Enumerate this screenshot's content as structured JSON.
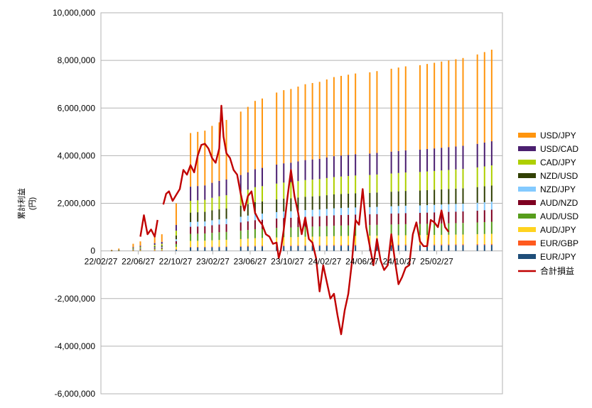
{
  "chart_data": {
    "type": "bar",
    "ylabel": "累計利益",
    "ylabel_unit": "(円)",
    "ylim": [
      -6000000,
      10000000
    ],
    "y_ticks": [
      -6000000,
      -4000000,
      -2000000,
      0,
      2000000,
      4000000,
      6000000,
      8000000,
      10000000
    ],
    "y_tick_labels": [
      "-6,000,000",
      "-4,000,000",
      "-2,000,000",
      "0",
      "2,000,000",
      "4,000,000",
      "6,000,000",
      "8,000,000",
      "10,000,000"
    ],
    "x_tick_labels": [
      "22/02/27",
      "22/06/27",
      "22/10/27",
      "23/02/27",
      "23/06/27",
      "23/10/27",
      "24/02/27",
      "24/06/27",
      "24/10/27",
      "25/02/27"
    ],
    "grid": true,
    "legend_position": "right",
    "stack_series": [
      {
        "name": "EUR/JPY",
        "color": "#1f4e79"
      },
      {
        "name": "EUR/GBP",
        "color": "#ff5a1f"
      },
      {
        "name": "AUD/JPY",
        "color": "#ffd320"
      },
      {
        "name": "AUD/USD",
        "color": "#579d1c"
      },
      {
        "name": "AUD/NZD",
        "color": "#7e0021"
      },
      {
        "name": "NZD/JPY",
        "color": "#83caff"
      },
      {
        "name": "NZD/USD",
        "color": "#314004"
      },
      {
        "name": "CAD/JPY",
        "color": "#aecf00"
      },
      {
        "name": "USD/CAD",
        "color": "#4b1f6f"
      },
      {
        "name": "USD/JPY",
        "color": "#ff950e"
      }
    ],
    "bar_totals": [
      [
        0,
        0
      ],
      [
        1,
        50000
      ],
      [
        2,
        100000
      ],
      [
        4,
        300000
      ],
      [
        5,
        400000
      ],
      [
        7,
        600000
      ],
      [
        8,
        700000
      ],
      [
        10,
        2000000
      ],
      [
        12,
        4950000
      ],
      [
        13,
        5000000
      ],
      [
        14,
        5050000
      ],
      [
        15,
        5250000
      ],
      [
        16,
        5400000
      ],
      [
        17,
        5500000
      ],
      [
        19,
        5850000
      ],
      [
        20,
        6050000
      ],
      [
        21,
        6300000
      ],
      [
        22,
        6400000
      ],
      [
        24,
        6650000
      ],
      [
        25,
        6750000
      ],
      [
        26,
        6800000
      ],
      [
        27,
        6900000
      ],
      [
        28,
        7000000
      ],
      [
        29,
        7050000
      ],
      [
        30,
        7100000
      ],
      [
        31,
        7200000
      ],
      [
        32,
        7300000
      ],
      [
        33,
        7350000
      ],
      [
        34,
        7400000
      ],
      [
        35,
        7450000
      ],
      [
        37,
        7500000
      ],
      [
        38,
        7550000
      ],
      [
        40,
        7650000
      ],
      [
        41,
        7700000
      ],
      [
        42,
        7750000
      ],
      [
        44,
        7800000
      ],
      [
        45,
        7850000
      ],
      [
        46,
        7900000
      ],
      [
        47,
        7950000
      ],
      [
        48,
        8000000
      ],
      [
        49,
        8050000
      ],
      [
        50,
        8100000
      ],
      [
        52,
        8250000
      ],
      [
        53,
        8350000
      ],
      [
        54,
        8450000
      ]
    ],
    "line_series": {
      "name": "合計損益",
      "color": "#c00000",
      "points": [
        [
          5,
          600000
        ],
        [
          5.5,
          1500000
        ],
        [
          6,
          700000
        ],
        [
          6.5,
          900000
        ],
        [
          7,
          600000
        ],
        [
          7.4,
          1300000
        ],
        [
          8,
          null
        ],
        [
          8.2,
          1950000
        ],
        [
          8.6,
          2400000
        ],
        [
          9,
          2500000
        ],
        [
          9.5,
          2100000
        ],
        [
          10,
          2350000
        ],
        [
          10.5,
          2600000
        ],
        [
          11,
          3400000
        ],
        [
          11.5,
          3200000
        ],
        [
          12,
          3600000
        ],
        [
          12.5,
          3300000
        ],
        [
          13,
          4000000
        ],
        [
          13.5,
          4450000
        ],
        [
          14,
          4500000
        ],
        [
          14.5,
          4300000
        ],
        [
          15,
          3900000
        ],
        [
          15.5,
          3700000
        ],
        [
          16,
          4300000
        ],
        [
          16.3,
          6100000
        ],
        [
          16.6,
          4800000
        ],
        [
          17,
          4100000
        ],
        [
          17.5,
          3900000
        ],
        [
          18,
          3400000
        ],
        [
          18.5,
          3200000
        ],
        [
          19,
          2400000
        ],
        [
          19.5,
          1700000
        ],
        [
          20,
          2300000
        ],
        [
          20.5,
          2500000
        ],
        [
          21,
          1600000
        ],
        [
          21.5,
          1300000
        ],
        [
          22,
          1100000
        ],
        [
          22.5,
          700000
        ],
        [
          23,
          600000
        ],
        [
          23.5,
          300000
        ],
        [
          24,
          350000
        ],
        [
          24.3,
          -300000
        ],
        [
          24.6,
          50000
        ],
        [
          25,
          900000
        ],
        [
          25.5,
          2200000
        ],
        [
          26,
          3400000
        ],
        [
          26.5,
          2300000
        ],
        [
          27,
          1600000
        ],
        [
          27.5,
          700000
        ],
        [
          28,
          1400000
        ],
        [
          28.5,
          500000
        ],
        [
          29,
          350000
        ],
        [
          29.5,
          -300000
        ],
        [
          30,
          -1700000
        ],
        [
          30.5,
          -600000
        ],
        [
          31,
          -1300000
        ],
        [
          31.5,
          -2000000
        ],
        [
          32,
          -1800000
        ],
        [
          32.5,
          -2700000
        ],
        [
          33,
          -3500000
        ],
        [
          33.5,
          -2500000
        ],
        [
          34,
          -1800000
        ],
        [
          34.5,
          -500000
        ],
        [
          35,
          1300000
        ],
        [
          35.5,
          1100000
        ],
        [
          36,
          2600000
        ],
        [
          36.5,
          1000000
        ],
        [
          37,
          200000
        ],
        [
          37.5,
          -600000
        ],
        [
          38,
          500000
        ],
        [
          38.5,
          -400000
        ],
        [
          39,
          -800000
        ],
        [
          39.5,
          -600000
        ],
        [
          40,
          700000
        ],
        [
          40.5,
          -400000
        ],
        [
          41,
          -1400000
        ],
        [
          41.5,
          -1100000
        ],
        [
          42,
          -700000
        ],
        [
          42.5,
          -600000
        ],
        [
          43,
          700000
        ],
        [
          43.5,
          1200000
        ],
        [
          44,
          400000
        ],
        [
          44.5,
          200000
        ],
        [
          45,
          200000
        ],
        [
          45.5,
          1300000
        ],
        [
          46,
          1200000
        ],
        [
          46.5,
          1000000
        ],
        [
          47,
          1700000
        ],
        [
          47.5,
          1000000
        ],
        [
          48,
          800000
        ]
      ]
    }
  }
}
